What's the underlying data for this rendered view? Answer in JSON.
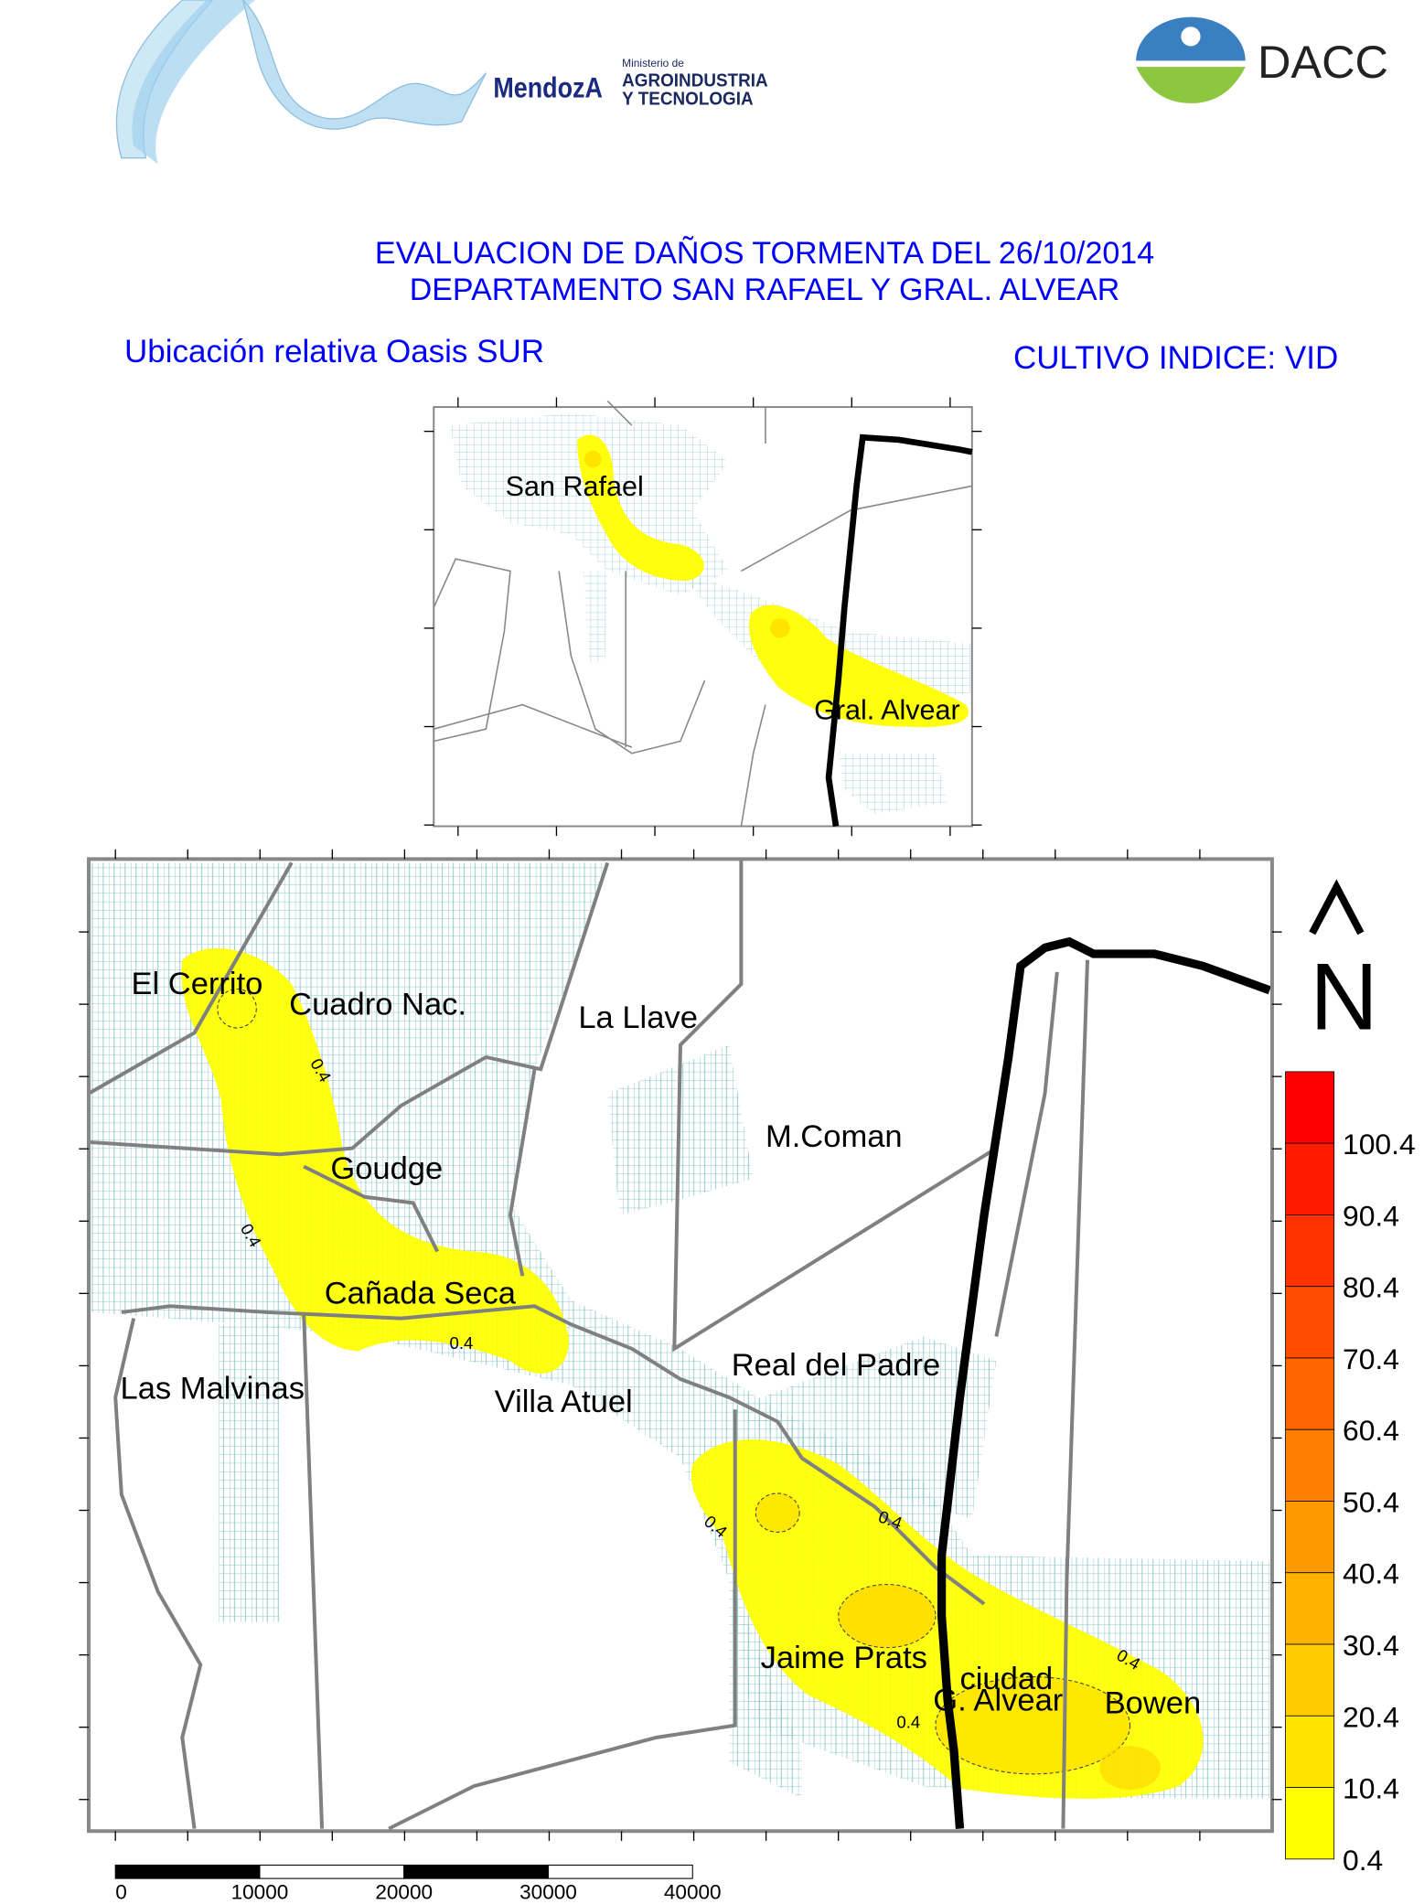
{
  "header": {
    "logo_left_text": "MendozA Ministerio de AGROINDUSTRIA Y TECNOLOGIA",
    "logo_right_text": "DACC"
  },
  "title": {
    "line1": "EVALUACION DE DAÑOS TORMENTA DEL 26/10/2014",
    "line2": "DEPARTAMENTO SAN RAFAEL Y GRAL. ALVEAR"
  },
  "inset": {
    "caption": "Ubicación relativa Oasis SUR",
    "labels": [
      "San Rafael",
      "Gral. Alvear"
    ]
  },
  "crop_index": "CULTIVO INDICE: VID",
  "main_map": {
    "places": [
      "El Cerrito",
      "Cuadro Nac.",
      "La Llave",
      "M.Coman",
      "Goudge",
      "Cañada Seca",
      "Las Malvinas",
      "Villa Atuel",
      "Real del Padre",
      "Jaime Prats",
      "ciudad",
      "G. Alvear",
      "Bowen"
    ],
    "contour_label": "0.4"
  },
  "north_arrow": {
    "caret": "^",
    "letter": "N"
  },
  "legend": {
    "labels": [
      "100.4",
      "90.4",
      "80.4",
      "70.4",
      "60.4",
      "50.4",
      "40.4",
      "30.4",
      "20.4",
      "10.4",
      "0.4"
    ],
    "colors": [
      "#ff0000",
      "#ff1a00",
      "#ff3300",
      "#ff4c00",
      "#ff6600",
      "#ff7f00",
      "#ff9900",
      "#ffb200",
      "#ffcc00",
      "#ffe500",
      "#ffff00"
    ]
  },
  "scale_bar": {
    "labels": [
      "0",
      "10000",
      "20000",
      "30000",
      "40000"
    ]
  },
  "colors": {
    "title": "#0000ff",
    "damage_low": "#ffff00",
    "parcels": "#8cc8c8",
    "roads": "#808080"
  }
}
